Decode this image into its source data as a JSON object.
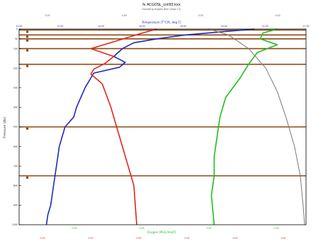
{
  "chart_data": {
    "type": "line",
    "title": "fs ACGOSL_cnt93.kxx",
    "subtitle": "Sounding Argoes Bari (Argo 11)",
    "top_axis_label": "Temperature [T°C/R, deg C]",
    "xlabel": "Oxygen [ML/L/mol/I]",
    "ylabel": "Pressure [db]",
    "ylim": [
      0,
      1000
    ],
    "y_reversed": true,
    "xlim": [
      0,
      10
    ],
    "y_ticks": [
      0,
      50,
      100,
      200,
      300,
      400,
      500,
      600,
      700,
      800,
      900,
      1000
    ],
    "top_ticks": [
      "10.00",
      "12.00",
      "14.00",
      "16.00",
      "18.00",
      "20.00",
      "22.00",
      "27.00"
    ],
    "top_ticks2": [
      "0.00",
      "0.00",
      "0.00",
      "0.00"
    ],
    "bottom_ticks": [
      "0.00",
      "0.00",
      "0.00",
      "0.00"
    ],
    "bottom_ticks2": [
      "0.00",
      "0.00",
      "0.00",
      "0.00",
      "0.00",
      "0.00"
    ],
    "grid": false,
    "legend": "none",
    "reference_levels": [
      5,
      30,
      50,
      100,
      180,
      500,
      750
    ],
    "colors": {
      "blue": "#1f2ab8",
      "red": "#e0261e",
      "green": "#1fbf1f",
      "gray": "#7a7a7a",
      "level_lines": "#8b4a14",
      "frame": "#000000"
    },
    "series": [
      {
        "color": "#1f2ab8",
        "x": [
          8.2,
          7.0,
          5.8,
          4.8,
          4.0,
          3.6,
          3.3,
          3.7,
          3.5,
          2.6,
          2.3,
          2.0,
          1.9,
          1.6,
          1.4,
          1.3,
          1.2,
          1.1,
          1.0,
          0.95
        ],
        "y": [
          0,
          15,
          30,
          50,
          70,
          100,
          140,
          170,
          195,
          225,
          300,
          400,
          450,
          500,
          600,
          700,
          800,
          900,
          950,
          1000
        ]
      },
      {
        "color": "#e0261e",
        "x": [
          4.8,
          4.3,
          3.4,
          2.5,
          3.3,
          3.0,
          2.6,
          2.5,
          2.9,
          3.2,
          3.4,
          3.6,
          3.8,
          4.0,
          4.1
        ],
        "y": [
          0,
          20,
          60,
          100,
          140,
          175,
          205,
          230,
          280,
          400,
          500,
          600,
          700,
          800,
          1000
        ]
      },
      {
        "color": "#1fbf1f",
        "x": [
          9.0,
          8.5,
          8.4,
          9.0,
          8.3,
          8.0,
          7.7,
          7.2,
          7.0,
          6.9,
          6.8,
          6.8,
          6.7,
          6.8
        ],
        "y": [
          0,
          20,
          50,
          80,
          120,
          180,
          250,
          350,
          450,
          550,
          650,
          750,
          850,
          1000
        ]
      },
      {
        "color": "#7a7a7a",
        "x": [
          6.6,
          7.3,
          8.0,
          8.6,
          9.0,
          9.3,
          9.6,
          9.8,
          9.9,
          9.95
        ],
        "y": [
          0,
          30,
          100,
          200,
          320,
          450,
          600,
          750,
          900,
          1000
        ]
      }
    ]
  }
}
